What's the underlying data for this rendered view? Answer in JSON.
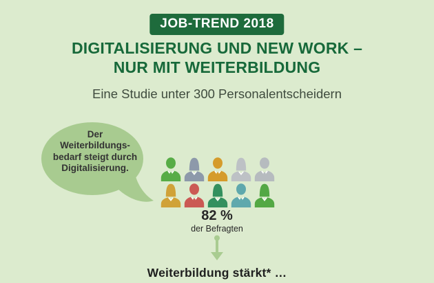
{
  "header": {
    "badge": "JOB-TREND 2018",
    "title_line1": "DIGITALISIERUNG UND NEW WORK –",
    "title_line2": "NUR MIT WEITERBILDUNG",
    "subtitle": "Eine Studie unter 300 Personalentscheidern"
  },
  "speech_bubble": {
    "lines": [
      "Der",
      "Weiterbildungs-",
      "bedarf steigt durch",
      "Digitalisierung."
    ]
  },
  "pictograph": {
    "people": [
      {
        "type": "male",
        "color": "#57ac46"
      },
      {
        "type": "female",
        "color": "#8d99aa"
      },
      {
        "type": "male",
        "color": "#d59b2b"
      },
      {
        "type": "female",
        "color": "#bdc1c5"
      },
      {
        "type": "male",
        "color": "#b6bbbf"
      },
      {
        "type": "female",
        "color": "#d0a238"
      },
      {
        "type": "male",
        "color": "#cb5954"
      },
      {
        "type": "female",
        "color": "#33905e"
      },
      {
        "type": "male",
        "color": "#5fa8ad"
      },
      {
        "type": "female",
        "color": "#53a844"
      }
    ],
    "stat_value": "82 %",
    "stat_caption": "der Befragten"
  },
  "flow": {
    "next_section_label": "Weiterbildung stärkt* …"
  },
  "colors": {
    "background": "#dcebce",
    "badge_bg": "#1e6b3c",
    "badge_text": "#ffffff",
    "title": "#17693a",
    "subtitle": "#3f4b3e",
    "bubble": "#a8cb90",
    "bubble_text": "#333333",
    "arrow": "#a9cc91",
    "stat": "#262626",
    "footer": "#1f1f1f"
  }
}
